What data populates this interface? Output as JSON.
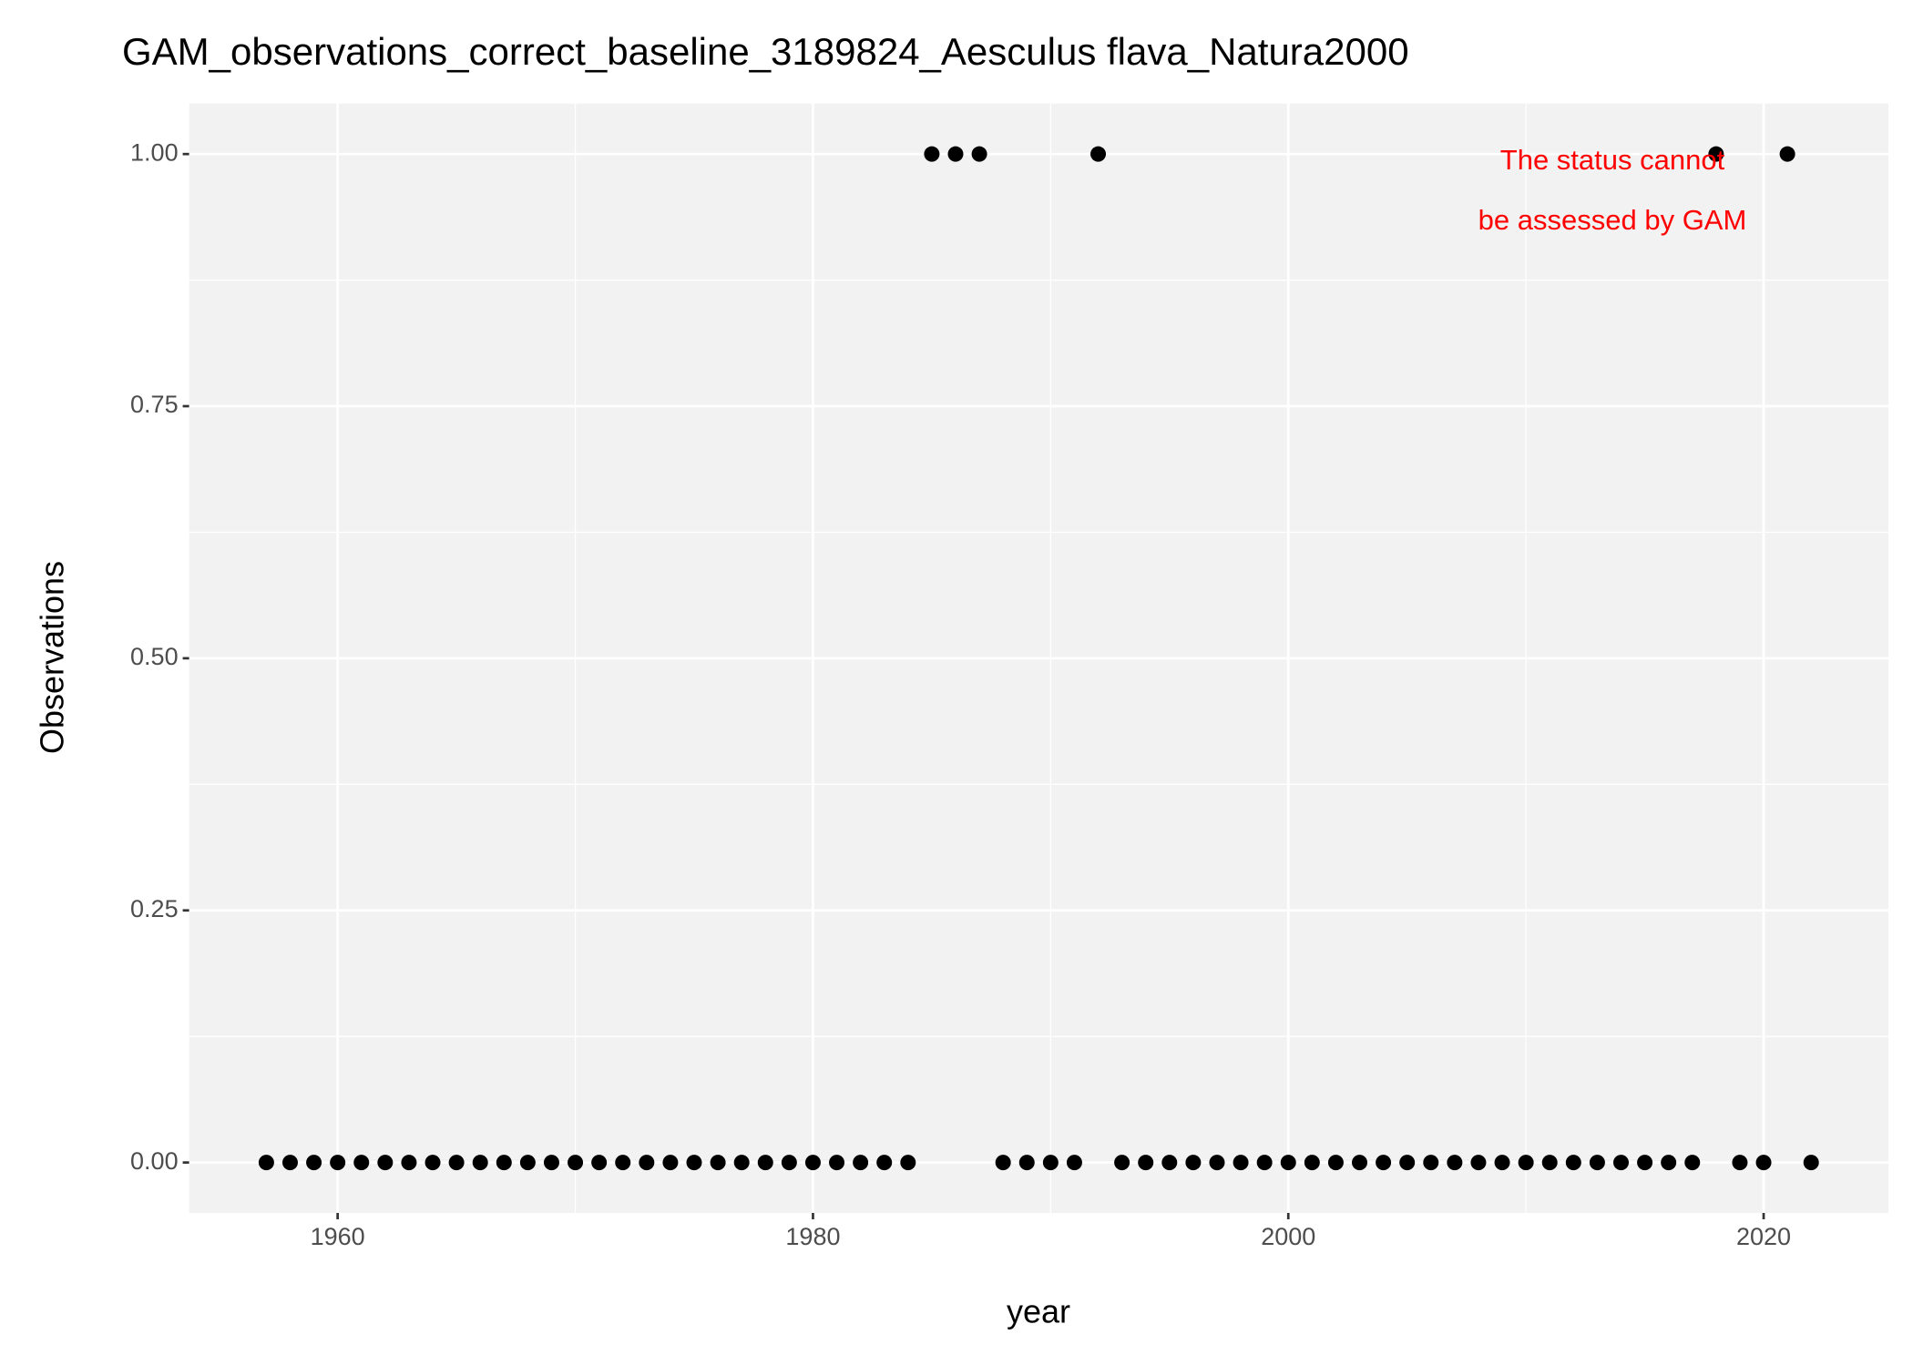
{
  "chart_data": {
    "type": "scatter",
    "title": "GAM_observations_correct_baseline_3189824_Aesculus flava_Natura2000",
    "x_label": "year",
    "y_label": "Observations",
    "annotation": [
      "The status cannot",
      "be assessed by GAM"
    ],
    "annotation_color": "#ff0000",
    "color": "#000000",
    "x": [
      1957,
      1958,
      1959,
      1960,
      1961,
      1962,
      1963,
      1964,
      1965,
      1966,
      1967,
      1968,
      1969,
      1970,
      1971,
      1972,
      1973,
      1974,
      1975,
      1976,
      1977,
      1978,
      1979,
      1980,
      1981,
      1982,
      1983,
      1984,
      1985,
      1986,
      1987,
      1988,
      1989,
      1990,
      1991,
      1992,
      1993,
      1994,
      1995,
      1996,
      1997,
      1998,
      1999,
      2000,
      2001,
      2002,
      2003,
      2004,
      2005,
      2006,
      2007,
      2008,
      2009,
      2010,
      2011,
      2012,
      2013,
      2014,
      2015,
      2016,
      2017,
      2018,
      2019,
      2020,
      2021,
      2022
    ],
    "values": [
      0,
      0,
      0,
      0,
      0,
      0,
      0,
      0,
      0,
      0,
      0,
      0,
      0,
      0,
      0,
      0,
      0,
      0,
      0,
      0,
      0,
      0,
      0,
      0,
      0,
      0,
      0,
      0,
      1,
      1,
      1,
      0,
      0,
      0,
      0,
      1,
      0,
      0,
      0,
      0,
      0,
      0,
      0,
      0,
      0,
      0,
      0,
      0,
      0,
      0,
      0,
      0,
      0,
      0,
      0,
      0,
      0,
      0,
      0,
      0,
      0,
      1,
      0,
      0,
      1,
      0
    ],
    "xlim": [
      1953.75,
      2025.25
    ],
    "xticks": [
      1960,
      1980,
      2000,
      2020
    ],
    "ylim": [
      -0.05,
      1.05
    ],
    "yticks": [
      {
        "value": 0,
        "label": "0.00"
      },
      {
        "value": 0.25,
        "label": "0.25"
      },
      {
        "value": 0.5,
        "label": "0.50"
      },
      {
        "value": 0.75,
        "label": "0.75"
      },
      {
        "value": 1,
        "label": "1.00"
      }
    ],
    "grid": true
  }
}
